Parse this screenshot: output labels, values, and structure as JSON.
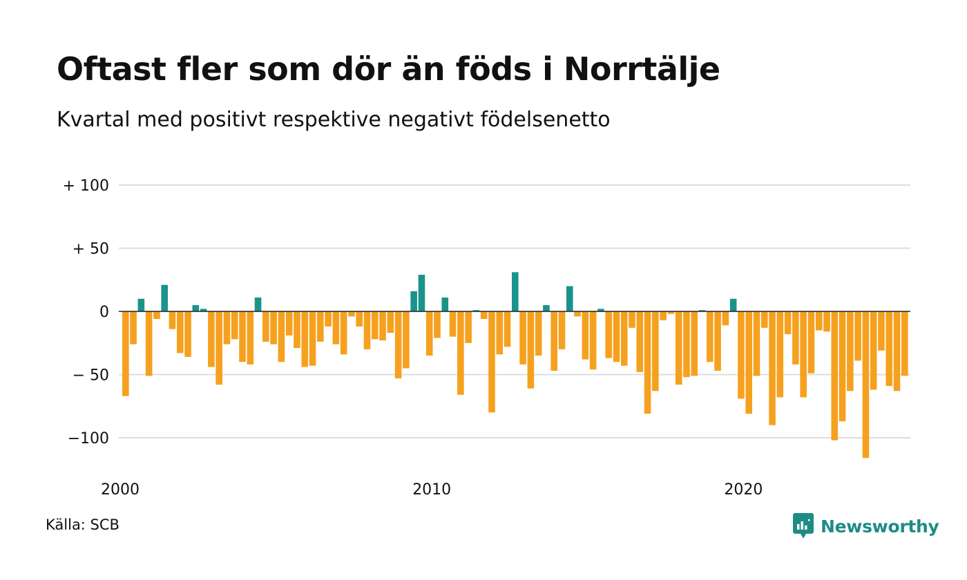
{
  "title": "Oftast fler som dör än föds i Norrtälje",
  "subtitle": "Kvartal med positivt respektive negativt födelsenetto",
  "source": "Källa: SCB",
  "brand": {
    "name": "Newsworthy",
    "icon": "newsworthy-logo-icon"
  },
  "colors": {
    "positive": "#1a948a",
    "negative": "#f5a11f",
    "grid": "#dddddd",
    "zero_line": "#222222"
  },
  "chart_data": {
    "type": "bar",
    "title": "Oftast fler som dör än föds i Norrtälje",
    "subtitle": "Kvartal med positivt respektive negativt födelsenetto",
    "xlabel": "",
    "ylabel": "",
    "ylim": [
      -125,
      100
    ],
    "grid": true,
    "legend": "none",
    "y_ticks": [
      {
        "value": 100,
        "label": "+ 100"
      },
      {
        "value": 50,
        "label": "+  50"
      },
      {
        "value": 0,
        "label": "0"
      },
      {
        "value": -50,
        "label": "− 50"
      },
      {
        "value": -100,
        "label": "−100"
      }
    ],
    "x_ticks": [
      {
        "value": 2000,
        "label": "2000"
      },
      {
        "value": 2010,
        "label": "2010"
      },
      {
        "value": 2020,
        "label": "2020"
      }
    ],
    "categories": [
      "2000 K1",
      "2000 K2",
      "2000 K3",
      "2000 K4",
      "2001 K1",
      "2001 K2",
      "2001 K3",
      "2001 K4",
      "2002 K1",
      "2002 K2",
      "2002 K3",
      "2002 K4",
      "2003 K1",
      "2003 K2",
      "2003 K3",
      "2003 K4",
      "2004 K1",
      "2004 K2",
      "2004 K3",
      "2004 K4",
      "2005 K1",
      "2005 K2",
      "2005 K3",
      "2005 K4",
      "2006 K1",
      "2006 K2",
      "2006 K3",
      "2006 K4",
      "2007 K1",
      "2007 K2",
      "2007 K3",
      "2007 K4",
      "2008 K1",
      "2008 K2",
      "2008 K3",
      "2008 K4",
      "2009 K1",
      "2009 K2",
      "2009 K3",
      "2009 K4",
      "2010 K1",
      "2010 K2",
      "2010 K3",
      "2010 K4",
      "2011 K1",
      "2011 K2",
      "2011 K3",
      "2011 K4",
      "2012 K1",
      "2012 K2",
      "2012 K3",
      "2012 K4",
      "2013 K1",
      "2013 K2",
      "2013 K3",
      "2013 K4",
      "2014 K1",
      "2014 K2",
      "2014 K3",
      "2014 K4",
      "2015 K1",
      "2015 K2",
      "2015 K3",
      "2015 K4",
      "2016 K1",
      "2016 K2",
      "2016 K3",
      "2016 K4",
      "2017 K1",
      "2017 K2",
      "2017 K3",
      "2017 K4",
      "2018 K1",
      "2018 K2",
      "2018 K3",
      "2018 K4",
      "2019 K1",
      "2019 K2",
      "2019 K3",
      "2019 K4",
      "2020 K1",
      "2020 K2",
      "2020 K3",
      "2020 K4",
      "2021 K1",
      "2021 K2",
      "2021 K3",
      "2021 K4",
      "2022 K1",
      "2022 K2",
      "2022 K3",
      "2022 K4",
      "2023 K1",
      "2023 K2",
      "2023 K3",
      "2023 K4",
      "2024 K1",
      "2024 K2",
      "2024 K3",
      "2024 K4",
      "2025 K1"
    ],
    "values": [
      -67,
      -26,
      10,
      -51,
      -6,
      21,
      -14,
      -33,
      -36,
      5,
      2,
      -44,
      -58,
      -26,
      -22,
      -40,
      -42,
      11,
      -24,
      -26,
      -40,
      -19,
      -29,
      -44,
      -43,
      -24,
      -12,
      -26,
      -34,
      -4,
      -12,
      -30,
      -22,
      -23,
      -17,
      -53,
      -45,
      16,
      29,
      -35,
      -21,
      11,
      -20,
      -66,
      -25,
      1,
      -6,
      -80,
      -34,
      -28,
      31,
      -42,
      -61,
      -35,
      5,
      -47,
      -30,
      20,
      -4,
      -38,
      -46,
      2,
      -37,
      -40,
      -43,
      -13,
      -48,
      -81,
      -63,
      -7,
      -2,
      -58,
      -52,
      -51,
      1,
      -40,
      -47,
      -11,
      10,
      -69,
      -81,
      -51,
      -13,
      -90,
      -68,
      -18,
      -42,
      -68,
      -49,
      -15,
      -16,
      -102,
      -87,
      -63,
      -39,
      -116,
      -62,
      -31,
      -59,
      -63,
      -51
    ]
  }
}
